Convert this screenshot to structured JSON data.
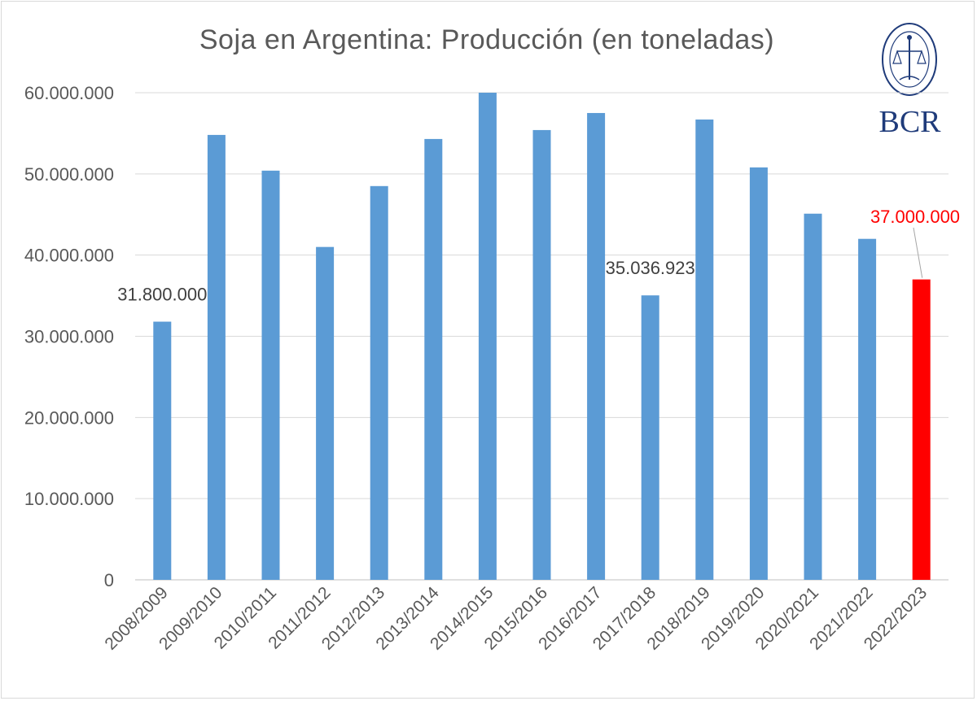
{
  "chart_data": {
    "type": "bar",
    "title": "Soja en Argentina: Producción (en toneladas)",
    "xlabel": "",
    "ylabel": "",
    "ylim": [
      0,
      60000000
    ],
    "yticks": [
      0,
      10000000,
      20000000,
      30000000,
      40000000,
      50000000,
      60000000
    ],
    "ytick_labels": [
      "0",
      "10.000.000",
      "20.000.000",
      "30.000.000",
      "40.000.000",
      "50.000.000",
      "60.000.000"
    ],
    "grid": true,
    "categories": [
      "2008/2009",
      "2009/2010",
      "2010/2011",
      "2011/2012",
      "2012/2013",
      "2013/2014",
      "2014/2015",
      "2015/2016",
      "2016/2017",
      "2017/2018",
      "2018/2019",
      "2019/2020",
      "2020/2021",
      "2021/2022",
      "2022/2023"
    ],
    "values": [
      31800000,
      54800000,
      50400000,
      41000000,
      48500000,
      54300000,
      60000000,
      55400000,
      57500000,
      35036923,
      56700000,
      50800000,
      45100000,
      42000000,
      37000000
    ],
    "bar_color": "#5b9bd5",
    "highlight_color": "#ff0000",
    "highlight_index": 14,
    "annotations": [
      {
        "index": 0,
        "text": "31.800.000",
        "color": "#404040"
      },
      {
        "index": 9,
        "text": "35.036.923",
        "color": "#404040"
      },
      {
        "index": 14,
        "text": "37.000.000",
        "color": "#ff0000"
      }
    ]
  },
  "logo": {
    "text": "BCR",
    "color": "#1f3b7a"
  }
}
